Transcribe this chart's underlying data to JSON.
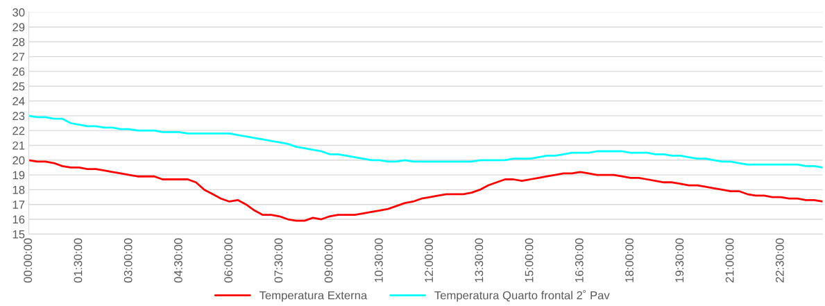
{
  "chart_data": {
    "type": "line",
    "x": [
      0,
      0.25,
      0.5,
      0.75,
      1,
      1.25,
      1.5,
      1.75,
      2,
      2.25,
      2.5,
      2.75,
      3,
      3.25,
      3.5,
      3.75,
      4,
      4.25,
      4.5,
      4.75,
      5,
      5.25,
      5.5,
      5.75,
      6,
      6.25,
      6.5,
      6.75,
      7,
      7.25,
      7.5,
      7.75,
      8,
      8.25,
      8.5,
      8.75,
      9,
      9.25,
      9.5,
      9.75,
      10,
      10.25,
      10.5,
      10.75,
      11,
      11.25,
      11.5,
      11.75,
      12,
      12.25,
      12.5,
      12.75,
      13,
      13.25,
      13.5,
      13.75,
      14,
      14.25,
      14.5,
      14.75,
      15,
      15.25,
      15.5,
      15.75,
      16,
      16.25,
      16.5,
      16.75,
      17,
      17.25,
      17.5,
      17.75,
      18,
      18.25,
      18.5,
      18.75,
      19,
      19.25,
      19.5,
      19.75,
      20,
      20.25,
      20.5,
      20.75,
      21,
      21.25,
      21.5,
      21.75,
      22,
      22.25,
      22.5,
      22.75,
      23,
      23.25,
      23.5,
      23.75
    ],
    "series": [
      {
        "name": "Temperatura Externa",
        "color": "#ff0000",
        "values": [
          20,
          19.9,
          19.9,
          19.8,
          19.6,
          19.5,
          19.5,
          19.4,
          19.4,
          19.3,
          19.2,
          19.1,
          19.0,
          18.9,
          18.9,
          18.9,
          18.7,
          18.7,
          18.7,
          18.7,
          18.5,
          18.0,
          17.7,
          17.4,
          17.2,
          17.3,
          17.0,
          16.6,
          16.3,
          16.3,
          16.2,
          16.0,
          15.9,
          15.9,
          16.1,
          16.0,
          16.2,
          16.3,
          16.3,
          16.3,
          16.4,
          16.5,
          16.6,
          16.7,
          16.9,
          17.1,
          17.2,
          17.4,
          17.5,
          17.6,
          17.7,
          17.7,
          17.7,
          17.8,
          18.0,
          18.3,
          18.5,
          18.7,
          18.7,
          18.6,
          18.7,
          18.8,
          18.9,
          19.0,
          19.1,
          19.1,
          19.2,
          19.1,
          19.0,
          19.0,
          19.0,
          18.9,
          18.8,
          18.8,
          18.7,
          18.6,
          18.5,
          18.5,
          18.4,
          18.3,
          18.3,
          18.2,
          18.1,
          18.0,
          17.9,
          17.9,
          17.7,
          17.6,
          17.6,
          17.5,
          17.5,
          17.4,
          17.4,
          17.3,
          17.3,
          17.2
        ]
      },
      {
        "name": "Temperatura Quarto frontal 2˚ Pav",
        "color": "#00ffff",
        "values": [
          23.0,
          22.9,
          22.9,
          22.8,
          22.8,
          22.5,
          22.4,
          22.3,
          22.3,
          22.2,
          22.2,
          22.1,
          22.1,
          22.0,
          22.0,
          22.0,
          21.9,
          21.9,
          21.9,
          21.8,
          21.8,
          21.8,
          21.8,
          21.8,
          21.8,
          21.7,
          21.6,
          21.5,
          21.4,
          21.3,
          21.2,
          21.1,
          20.9,
          20.8,
          20.7,
          20.6,
          20.4,
          20.4,
          20.3,
          20.2,
          20.1,
          20.0,
          20.0,
          19.9,
          19.9,
          20.0,
          19.9,
          19.9,
          19.9,
          19.9,
          19.9,
          19.9,
          19.9,
          19.9,
          20.0,
          20.0,
          20.0,
          20.0,
          20.1,
          20.1,
          20.1,
          20.2,
          20.3,
          20.3,
          20.4,
          20.5,
          20.5,
          20.5,
          20.6,
          20.6,
          20.6,
          20.6,
          20.5,
          20.5,
          20.5,
          20.4,
          20.4,
          20.3,
          20.3,
          20.2,
          20.1,
          20.1,
          20.0,
          19.9,
          19.9,
          19.8,
          19.7,
          19.7,
          19.7,
          19.7,
          19.7,
          19.7,
          19.7,
          19.6,
          19.6,
          19.5
        ]
      }
    ],
    "xlim": [
      0,
      23.75
    ],
    "xticks": [
      {
        "value": 0,
        "label": "00:00:00"
      },
      {
        "value": 1.5,
        "label": "01:30:00"
      },
      {
        "value": 3,
        "label": "03:00:00"
      },
      {
        "value": 4.5,
        "label": "04:30:00"
      },
      {
        "value": 6,
        "label": "06:00:00"
      },
      {
        "value": 7.5,
        "label": "07:30:00"
      },
      {
        "value": 9,
        "label": "09:00:00"
      },
      {
        "value": 10.5,
        "label": "10:30:00"
      },
      {
        "value": 12,
        "label": "12:00:00"
      },
      {
        "value": 13.5,
        "label": "13:30:00"
      },
      {
        "value": 15,
        "label": "15:00:00"
      },
      {
        "value": 16.5,
        "label": "16:30:00"
      },
      {
        "value": 18,
        "label": "18:00:00"
      },
      {
        "value": 19.5,
        "label": "19:30:00"
      },
      {
        "value": 21,
        "label": "21:00:00"
      },
      {
        "value": 22.5,
        "label": "22:30:00"
      }
    ],
    "ylim": [
      15,
      30
    ],
    "yticks": [
      15,
      16,
      17,
      18,
      19,
      20,
      21,
      22,
      23,
      24,
      25,
      26,
      27,
      28,
      29,
      30
    ],
    "grid": "y",
    "legend": "bottom",
    "marker": "none",
    "line_style": "solid"
  }
}
